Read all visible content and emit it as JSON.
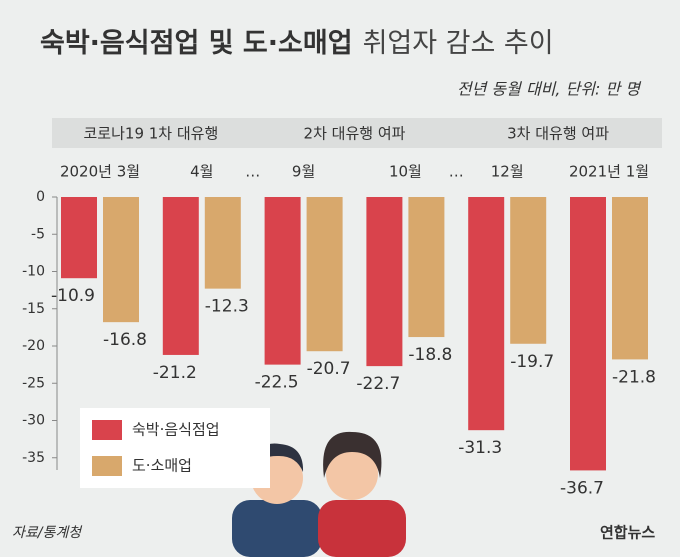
{
  "chart_data": {
    "type": "bar",
    "title": "숙박·음식점업 및 도·소매업",
    "title_suffix": "취업자 감소 추이",
    "subtitle": "전년 동월 대비, 단위: 만 명",
    "periods": [
      "코로나19 1차 대유행",
      "2차 대유행 여파",
      "3차 대유행 여파"
    ],
    "separators": [
      "…",
      "…"
    ],
    "categories": [
      "2020년 3월",
      "4월",
      "9월",
      "10월",
      "12월",
      "2021년 1월"
    ],
    "series": [
      {
        "name": "숙박·음식점업",
        "color": "#d9434c",
        "label_color": "#c8323b",
        "values": [
          -10.9,
          -21.2,
          -22.5,
          -22.7,
          -31.3,
          -36.7
        ]
      },
      {
        "name": "도·소매업",
        "color": "#d8a86c",
        "label_color": "#333333",
        "values": [
          -16.8,
          -12.3,
          -20.7,
          -18.8,
          -19.7,
          -21.8
        ]
      }
    ],
    "ylim": [
      -40,
      0
    ],
    "yticks": [
      0,
      -5,
      -10,
      -15,
      -20,
      -25,
      -30,
      -35
    ],
    "legend": "lower left",
    "source": "자료/통계청",
    "logo": "연합뉴스"
  }
}
